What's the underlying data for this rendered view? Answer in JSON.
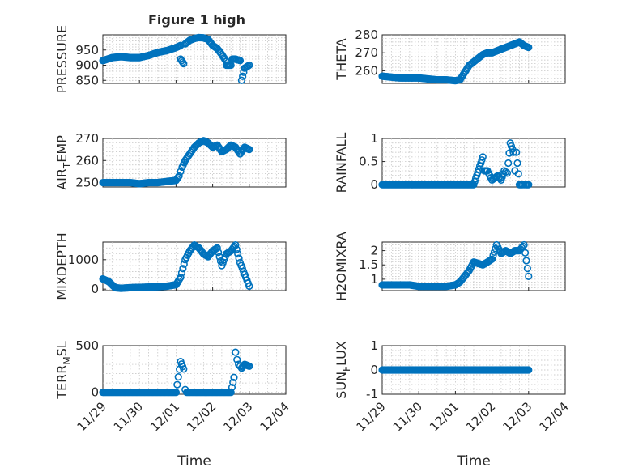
{
  "figure": {
    "title": "Figure 1 high",
    "marker_color": "#0072BD"
  },
  "chart_data": [
    {
      "type": "scatter",
      "marker": "circle-open",
      "title": "Figure 1 high",
      "xlabel": "",
      "ylabel": "PRESSURE",
      "ylim": [
        840,
        1000
      ],
      "xlim": [
        "11/29",
        "12/04"
      ],
      "x_ticks": [
        "11/29",
        "11/30",
        "12/01",
        "12/02",
        "12/03",
        "12/04"
      ],
      "y_ticks": [
        850,
        900,
        950
      ],
      "y_tick_labels": [
        "850",
        "900",
        "950"
      ],
      "grid": true,
      "x": [
        "11/29 00:00",
        "11/29 06:00",
        "11/29 12:00",
        "11/29 18:00",
        "11/30 00:00",
        "11/30 06:00",
        "11/30 12:00",
        "11/30 18:00",
        "12/01 00:00",
        "12/01 03:00",
        "12/01 06:00",
        "12/01 09:00",
        "12/01 12:00",
        "12/01 15:00",
        "12/01 18:00",
        "12/01 21:00",
        "12/02 00:00",
        "12/02 03:00",
        "12/02 06:00",
        "12/02 09:00",
        "12/02 12:00",
        "12/02 15:00",
        "12/02 18:00",
        "12/02 21:00",
        "12/03 00:00",
        "12/01 03:00",
        "12/01 05:00",
        "12/02 09:00",
        "12/02 13:00",
        "12/02 19:00"
      ],
      "y": [
        915,
        925,
        928,
        925,
        925,
        932,
        942,
        948,
        958,
        965,
        970,
        982,
        988,
        991,
        990,
        985,
        965,
        955,
        935,
        912,
        900,
        920,
        915,
        890,
        900,
        920,
        905,
        900,
        920,
        850
      ]
    },
    {
      "type": "scatter",
      "marker": "circle-open",
      "xlabel": "",
      "ylabel": "THETA",
      "ylim": [
        253,
        280
      ],
      "xlim": [
        "11/29",
        "12/04"
      ],
      "x_ticks": [
        "11/29",
        "11/30",
        "12/01",
        "12/02",
        "12/03",
        "12/04"
      ],
      "y_ticks": [
        260,
        270,
        280
      ],
      "y_tick_labels": [
        "260",
        "270",
        "280"
      ],
      "grid": true,
      "x": [
        "11/29 00:00",
        "11/29 06:00",
        "11/29 12:00",
        "11/29 18:00",
        "11/30 00:00",
        "11/30 06:00",
        "11/30 12:00",
        "11/30 18:00",
        "12/01 00:00",
        "12/01 03:00",
        "12/01 06:00",
        "12/01 09:00",
        "12/01 12:00",
        "12/01 15:00",
        "12/01 18:00",
        "12/01 21:00",
        "12/02 00:00",
        "12/02 03:00",
        "12/02 06:00",
        "12/02 09:00",
        "12/02 12:00",
        "12/02 15:00",
        "12/02 18:00",
        "12/02 21:00",
        "12/03 00:00"
      ],
      "y": [
        257,
        256.5,
        256,
        256,
        256,
        255.5,
        255,
        255,
        254.5,
        255,
        259,
        263,
        265,
        267,
        269,
        270,
        270,
        271,
        272,
        273,
        274,
        275,
        276,
        274,
        273
      ]
    },
    {
      "type": "scatter",
      "marker": "circle-open",
      "xlabel": "",
      "ylabel": "AIR_TEMP",
      "ylim": [
        248,
        270
      ],
      "xlim": [
        "11/29",
        "12/04"
      ],
      "x_ticks": [
        "11/29",
        "11/30",
        "12/01",
        "12/02",
        "12/03",
        "12/04"
      ],
      "y_ticks": [
        250,
        260,
        270
      ],
      "y_tick_labels": [
        "250",
        "260",
        "270"
      ],
      "grid": true,
      "x": [
        "11/29 00:00",
        "11/29 06:00",
        "11/29 12:00",
        "11/29 18:00",
        "11/30 00:00",
        "11/30 06:00",
        "11/30 12:00",
        "11/30 18:00",
        "12/01 00:00",
        "12/01 02:00",
        "12/01 04:00",
        "12/01 06:00",
        "12/01 09:00",
        "12/01 12:00",
        "12/01 15:00",
        "12/01 18:00",
        "12/01 21:00",
        "12/02 00:00",
        "12/02 03:00",
        "12/02 06:00",
        "12/02 09:00",
        "12/02 12:00",
        "12/02 15:00",
        "12/02 18:00",
        "12/02 21:00",
        "12/03 00:00"
      ],
      "y": [
        250,
        250,
        250,
        250,
        249.5,
        250,
        250,
        250.5,
        251,
        253,
        257,
        260,
        263,
        266,
        268,
        269,
        268,
        266,
        267,
        264,
        265,
        267,
        266,
        263,
        266,
        265
      ]
    },
    {
      "type": "scatter",
      "marker": "circle-open",
      "xlabel": "",
      "ylabel": "RAINFALL",
      "ylim": [
        -0.05,
        1.0
      ],
      "xlim": [
        "11/29",
        "12/04"
      ],
      "x_ticks": [
        "11/29",
        "11/30",
        "12/01",
        "12/02",
        "12/03",
        "12/04"
      ],
      "y_ticks": [
        0,
        0.5,
        1
      ],
      "y_tick_labels": [
        "0",
        "0.5",
        "1"
      ],
      "grid": true,
      "x": [
        "11/29 00:00",
        "11/29 06:00",
        "11/29 12:00",
        "11/29 18:00",
        "11/30 00:00",
        "11/30 06:00",
        "11/30 12:00",
        "11/30 18:00",
        "12/01 00:00",
        "12/01 06:00",
        "12/01 12:00",
        "12/01 18:00",
        "12/01 19:00",
        "12/01 21:00",
        "12/02 00:00",
        "12/02 04:00",
        "12/02 06:00",
        "12/02 08:00",
        "12/02 10:00",
        "12/02 12:00",
        "12/02 14:00",
        "12/02 15:00",
        "12/02 16:00",
        "12/02 18:00",
        "12/02 20:00",
        "12/02 22:00",
        "12/03 00:00"
      ],
      "y": [
        0,
        0,
        0,
        0,
        0,
        0,
        0,
        0,
        0,
        0,
        0,
        0.6,
        0.3,
        0.3,
        0.1,
        0.2,
        0.1,
        0.3,
        0.25,
        0.9,
        0.7,
        0.3,
        0.7,
        0,
        0,
        0,
        0
      ]
    },
    {
      "type": "scatter",
      "marker": "circle-open",
      "xlabel": "",
      "ylabel": "MIXDEPTH",
      "ylim": [
        -50,
        1600
      ],
      "xlim": [
        "11/29",
        "12/04"
      ],
      "x_ticks": [
        "11/29",
        "11/30",
        "12/01",
        "12/02",
        "12/03",
        "12/04"
      ],
      "y_ticks": [
        0,
        1000
      ],
      "y_tick_labels": [
        "0",
        "1000"
      ],
      "grid": true,
      "x": [
        "11/29 00:00",
        "11/29 04:00",
        "11/29 08:00",
        "11/29 12:00",
        "11/29 18:00",
        "11/30 00:00",
        "11/30 06:00",
        "11/30 12:00",
        "11/30 18:00",
        "12/01 00:00",
        "12/01 03:00",
        "12/01 06:00",
        "12/01 09:00",
        "12/01 12:00",
        "12/01 15:00",
        "12/01 18:00",
        "12/01 21:00",
        "12/02 00:00",
        "12/02 03:00",
        "12/02 06:00",
        "12/02 09:00",
        "12/02 12:00",
        "12/02 15:00",
        "12/02 18:00",
        "12/02 21:00",
        "12/03 00:00"
      ],
      "y": [
        350,
        250,
        50,
        30,
        50,
        60,
        70,
        80,
        100,
        150,
        400,
        1000,
        1300,
        1500,
        1400,
        1200,
        1100,
        1300,
        1400,
        800,
        1200,
        1300,
        1500,
        900,
        500,
        100
      ]
    },
    {
      "type": "scatter",
      "marker": "circle-open",
      "xlabel": "",
      "ylabel": "H2OMIXRA",
      "ylim": [
        0.6,
        2.3
      ],
      "xlim": [
        "11/29",
        "12/04"
      ],
      "x_ticks": [
        "11/29",
        "11/30",
        "12/01",
        "12/02",
        "12/03",
        "12/04"
      ],
      "y_ticks": [
        1,
        1.5,
        2
      ],
      "y_tick_labels": [
        "1",
        "1.5",
        "2"
      ],
      "grid": true,
      "x": [
        "11/29 00:00",
        "11/29 06:00",
        "11/29 12:00",
        "11/29 18:00",
        "11/30 00:00",
        "11/30 06:00",
        "11/30 12:00",
        "11/30 18:00",
        "12/01 00:00",
        "12/01 03:00",
        "12/01 06:00",
        "12/01 09:00",
        "12/01 12:00",
        "12/01 15:00",
        "12/01 18:00",
        "12/01 21:00",
        "12/02 00:00",
        "12/02 03:00",
        "12/02 06:00",
        "12/02 09:00",
        "12/02 12:00",
        "12/02 15:00",
        "12/02 18:00",
        "12/02 21:00",
        "12/03 00:00"
      ],
      "y": [
        0.8,
        0.8,
        0.8,
        0.8,
        0.75,
        0.75,
        0.75,
        0.75,
        0.8,
        0.9,
        1.1,
        1.3,
        1.6,
        1.55,
        1.5,
        1.6,
        1.7,
        2.2,
        1.9,
        2.0,
        1.9,
        2.0,
        2.0,
        2.2,
        1.1
      ]
    },
    {
      "type": "scatter",
      "marker": "circle-open",
      "xlabel": "Time",
      "ylabel": "TERR_MSL",
      "ylim": [
        -20,
        500
      ],
      "xlim": [
        "11/29",
        "12/04"
      ],
      "x_ticks": [
        "11/29",
        "11/30",
        "12/01",
        "12/02",
        "12/03",
        "12/04"
      ],
      "y_ticks": [
        0,
        500
      ],
      "y_tick_labels": [
        "0",
        "500"
      ],
      "grid": true,
      "x": [
        "11/29 00:00",
        "11/29 12:00",
        "11/30 00:00",
        "11/30 12:00",
        "12/01 00:00",
        "12/01 03:00",
        "12/01 05:00",
        "12/01 06:00",
        "12/01 07:00",
        "12/01 12:00",
        "12/02 00:00",
        "12/02 12:00",
        "12/02 14:00",
        "12/02 15:00",
        "12/02 16:00",
        "12/02 17:00",
        "12/02 19:00",
        "12/02 21:00",
        "12/03 00:00"
      ],
      "y": [
        0,
        0,
        0,
        0,
        0,
        330,
        250,
        30,
        0,
        0,
        0,
        0,
        160,
        430,
        350,
        300,
        260,
        300,
        280
      ]
    },
    {
      "type": "scatter",
      "marker": "circle-open",
      "xlabel": "Time",
      "ylabel": "SUN_FLUX",
      "ylim": [
        -1,
        1
      ],
      "xlim": [
        "11/29",
        "12/04"
      ],
      "x_ticks": [
        "11/29",
        "11/30",
        "12/01",
        "12/02",
        "12/03",
        "12/04"
      ],
      "y_ticks": [
        -1,
        0,
        1
      ],
      "y_tick_labels": [
        "-1",
        "0",
        "1"
      ],
      "grid": true,
      "x": [
        "11/29 00:00",
        "11/29 12:00",
        "11/30 00:00",
        "11/30 12:00",
        "12/01 00:00",
        "12/01 12:00",
        "12/02 00:00",
        "12/02 12:00",
        "12/03 00:00"
      ],
      "y": [
        0,
        0,
        0,
        0,
        0,
        0,
        0,
        0,
        0
      ]
    }
  ],
  "panel_labels": [
    {
      "main": "PRESSURE",
      "sub": "",
      "rest": ""
    },
    {
      "main": "THETA",
      "sub": "",
      "rest": ""
    },
    {
      "main": "AIR",
      "sub": "T",
      "rest": "EMP"
    },
    {
      "main": "RAINFALL",
      "sub": "",
      "rest": ""
    },
    {
      "main": "MIXDEPTH",
      "sub": "",
      "rest": ""
    },
    {
      "main": "H2OMIXRA",
      "sub": "",
      "rest": ""
    },
    {
      "main": "TERR",
      "sub": "M",
      "rest": "SL"
    },
    {
      "main": "SUN",
      "sub": "F",
      "rest": "LUX"
    }
  ]
}
